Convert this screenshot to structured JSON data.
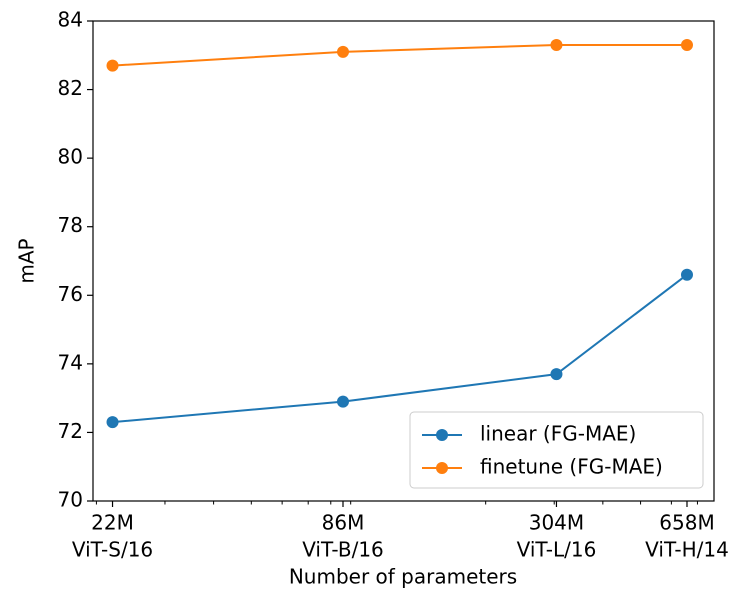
{
  "chart_data": {
    "type": "line",
    "x_label": "Number of parameters",
    "y_label": "mAP",
    "x": [
      22,
      86,
      304,
      658
    ],
    "series": [
      {
        "name": "linear (FG-MAE)",
        "color": "#1f77b4",
        "values": [
          72.3,
          72.9,
          73.7,
          76.6
        ]
      },
      {
        "name": "finetune (FG-MAE)",
        "color": "#ff7f0e",
        "values": [
          82.7,
          83.1,
          83.3,
          83.3
        ]
      }
    ],
    "xscale": "log",
    "xlim": [
      19.6,
      772
    ],
    "xticks": [
      {
        "value": 22,
        "label": [
          "22M",
          "ViT-S/16"
        ]
      },
      {
        "value": 86,
        "label": [
          "86M",
          "ViT-B/16"
        ]
      },
      {
        "value": 304,
        "label": [
          "304M",
          "ViT-L/16"
        ]
      },
      {
        "value": 658,
        "label": [
          "658M",
          "ViT-H/14"
        ]
      }
    ],
    "xminorticks": [
      20,
      30,
      40,
      50,
      60,
      70,
      80,
      90,
      200,
      300,
      400,
      500,
      600,
      700
    ],
    "ylim": [
      70,
      84
    ],
    "yticks": [
      70,
      72,
      74,
      76,
      78,
      80,
      82,
      84
    ],
    "grid": false,
    "legend": "lower right"
  }
}
